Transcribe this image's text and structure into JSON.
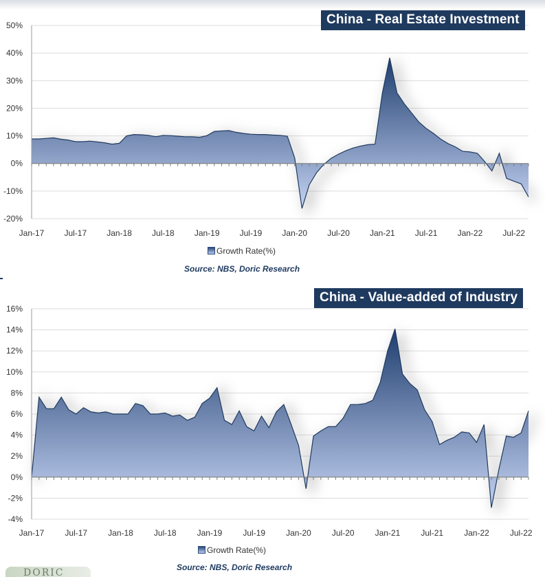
{
  "chart_data": [
    {
      "type": "area",
      "title": "China - Real Estate Investment",
      "legend": "Growth Rate(%)",
      "source": "Source: NBS, Doric Research",
      "ylim": [
        -20,
        50
      ],
      "yticks": [
        "50%",
        "40%",
        "30%",
        "20%",
        "10%",
        "0%",
        "-10%",
        "-20%"
      ],
      "ytick_values": [
        50,
        40,
        30,
        20,
        10,
        0,
        -10,
        -20
      ],
      "xticks": [
        "Jan-17",
        "Jul-17",
        "Jan-18",
        "Jul-18",
        "Jan-19",
        "Jul-19",
        "Jan-20",
        "Jul-20",
        "Jan-21",
        "Jul-21",
        "Jan-22",
        "Jul-22"
      ],
      "grid": true,
      "series": [
        {
          "name": "Growth Rate(%)",
          "values": [
            8.9,
            8.9,
            9.1,
            9.3,
            8.8,
            8.5,
            7.9,
            7.9,
            8.1,
            7.8,
            7.5,
            7.0,
            7.3,
            10.0,
            10.5,
            10.4,
            10.2,
            9.7,
            10.2,
            10.1,
            9.9,
            9.7,
            9.7,
            9.5,
            10.1,
            11.6,
            11.8,
            11.9,
            11.3,
            10.9,
            10.6,
            10.5,
            10.5,
            10.3,
            10.2,
            9.9,
            2.0,
            -16.3,
            -7.7,
            -3.3,
            -0.3,
            1.9,
            3.4,
            4.6,
            5.6,
            6.3,
            6.8,
            7.0,
            25.6,
            38.3,
            25.6,
            21.6,
            18.3,
            15.0,
            12.7,
            10.9,
            8.8,
            7.2,
            6.0,
            4.4,
            4.2,
            3.7,
            0.7,
            -2.7,
            3.7,
            -5.4,
            -6.4,
            -7.4,
            -12.1
          ]
        }
      ]
    },
    {
      "type": "area",
      "title": "China - Value-added of Industry",
      "legend": "Growth Rate(%)",
      "source": "Source: NBS, Doric Research",
      "ylim": [
        -4,
        16
      ],
      "yticks": [
        "16%",
        "14%",
        "12%",
        "10%",
        "8%",
        "6%",
        "4%",
        "2%",
        "0%",
        "-2%",
        "-4%"
      ],
      "ytick_values": [
        16,
        14,
        12,
        10,
        8,
        6,
        4,
        2,
        0,
        -2,
        -4
      ],
      "xticks": [
        "Jan-17",
        "Jul-17",
        "Jan-18",
        "Jul-18",
        "Jan-19",
        "Jul-19",
        "Jan-20",
        "Jul-20",
        "Jan-21",
        "Jul-21",
        "Jan-22",
        "Jul-22"
      ],
      "grid": true,
      "series": [
        {
          "name": "Growth Rate(%)",
          "values": [
            0.0,
            7.6,
            6.5,
            6.5,
            7.6,
            6.4,
            6.0,
            6.6,
            6.2,
            6.1,
            6.2,
            6.0,
            6.0,
            6.0,
            7.0,
            6.8,
            6.0,
            6.0,
            6.1,
            5.8,
            5.9,
            5.4,
            5.7,
            7.0,
            7.5,
            8.5,
            5.4,
            5.0,
            6.3,
            4.8,
            4.4,
            5.8,
            4.7,
            6.2,
            6.9,
            5.0,
            3.0,
            -1.1,
            3.9,
            4.4,
            4.8,
            4.8,
            5.6,
            6.9,
            6.9,
            7.0,
            7.3,
            9.0,
            12.0,
            14.1,
            9.8,
            8.9,
            8.3,
            6.4,
            5.3,
            3.1,
            3.5,
            3.8,
            4.3,
            4.2,
            3.3,
            5.0,
            -2.9,
            0.7,
            3.9,
            3.8,
            4.2,
            6.3
          ]
        }
      ]
    }
  ],
  "logo_text": "DORIC"
}
